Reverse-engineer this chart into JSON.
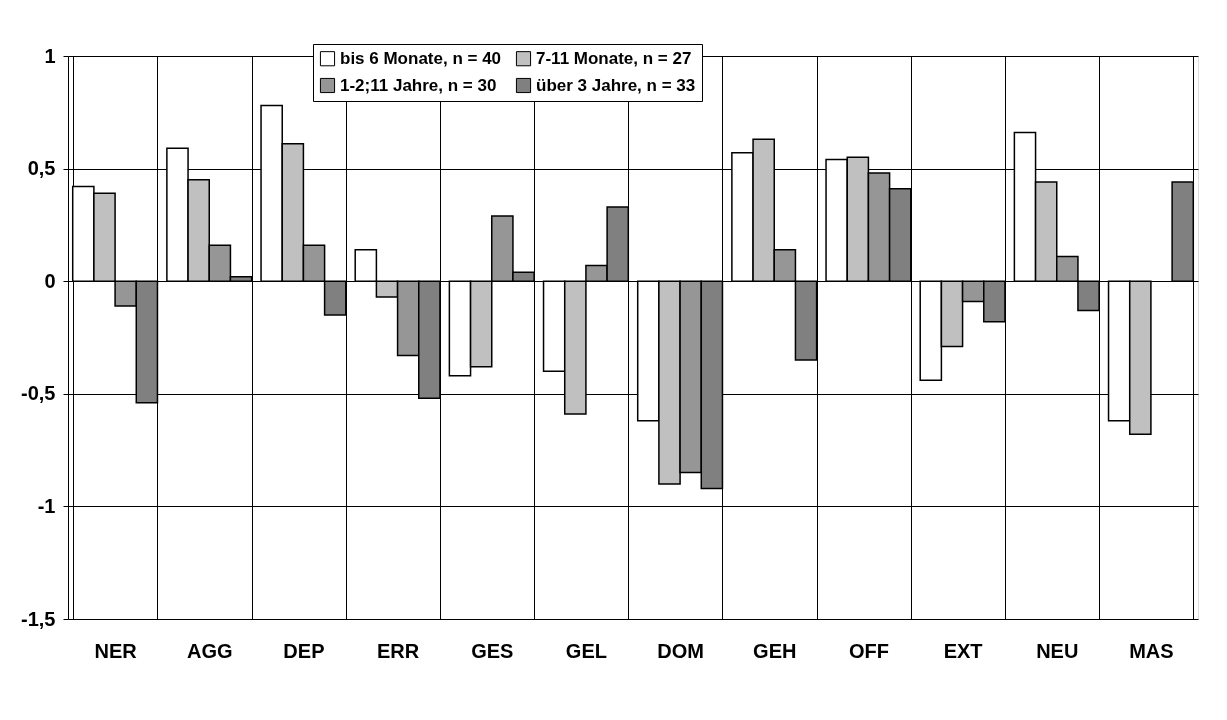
{
  "chart_data": {
    "type": "bar",
    "categories": [
      "NER",
      "AGG",
      "DEP",
      "ERR",
      "GES",
      "GEL",
      "DOM",
      "GEH",
      "OFF",
      "EXT",
      "NEU",
      "MAS"
    ],
    "series": [
      {
        "name": "bis 6 Monate, n = 40",
        "color": "#ffffff",
        "values": [
          0.42,
          0.59,
          0.78,
          0.14,
          -0.42,
          -0.4,
          -0.62,
          0.57,
          0.54,
          -0.44,
          0.66,
          -0.62
        ]
      },
      {
        "name": "7-11 Monate, n = 27",
        "color": "#c0c0c0",
        "values": [
          0.39,
          0.45,
          0.61,
          -0.07,
          -0.38,
          -0.59,
          -0.9,
          0.63,
          0.55,
          -0.29,
          0.44,
          -0.68
        ]
      },
      {
        "name": "1-2;11 Jahre, n = 30",
        "color": "#969696",
        "values": [
          -0.11,
          0.16,
          0.16,
          -0.33,
          0.29,
          0.07,
          -0.85,
          0.14,
          0.48,
          -0.09,
          0.11,
          null
        ]
      },
      {
        "name": "über 3 Jahre, n = 33",
        "color": "#808080",
        "values": [
          -0.54,
          0.02,
          -0.15,
          -0.52,
          0.04,
          0.33,
          -0.92,
          -0.35,
          0.41,
          -0.18,
          -0.13,
          0.44
        ]
      }
    ],
    "ylim": [
      -1.5,
      1
    ],
    "yticks": [
      {
        "value": -1.5,
        "label": "-1,5"
      },
      -1,
      {
        "value": -0.5,
        "label": "-0,5"
      },
      0,
      {
        "value": 0.5,
        "label": "0,5"
      },
      1
    ],
    "grid": true,
    "legend": "top"
  }
}
